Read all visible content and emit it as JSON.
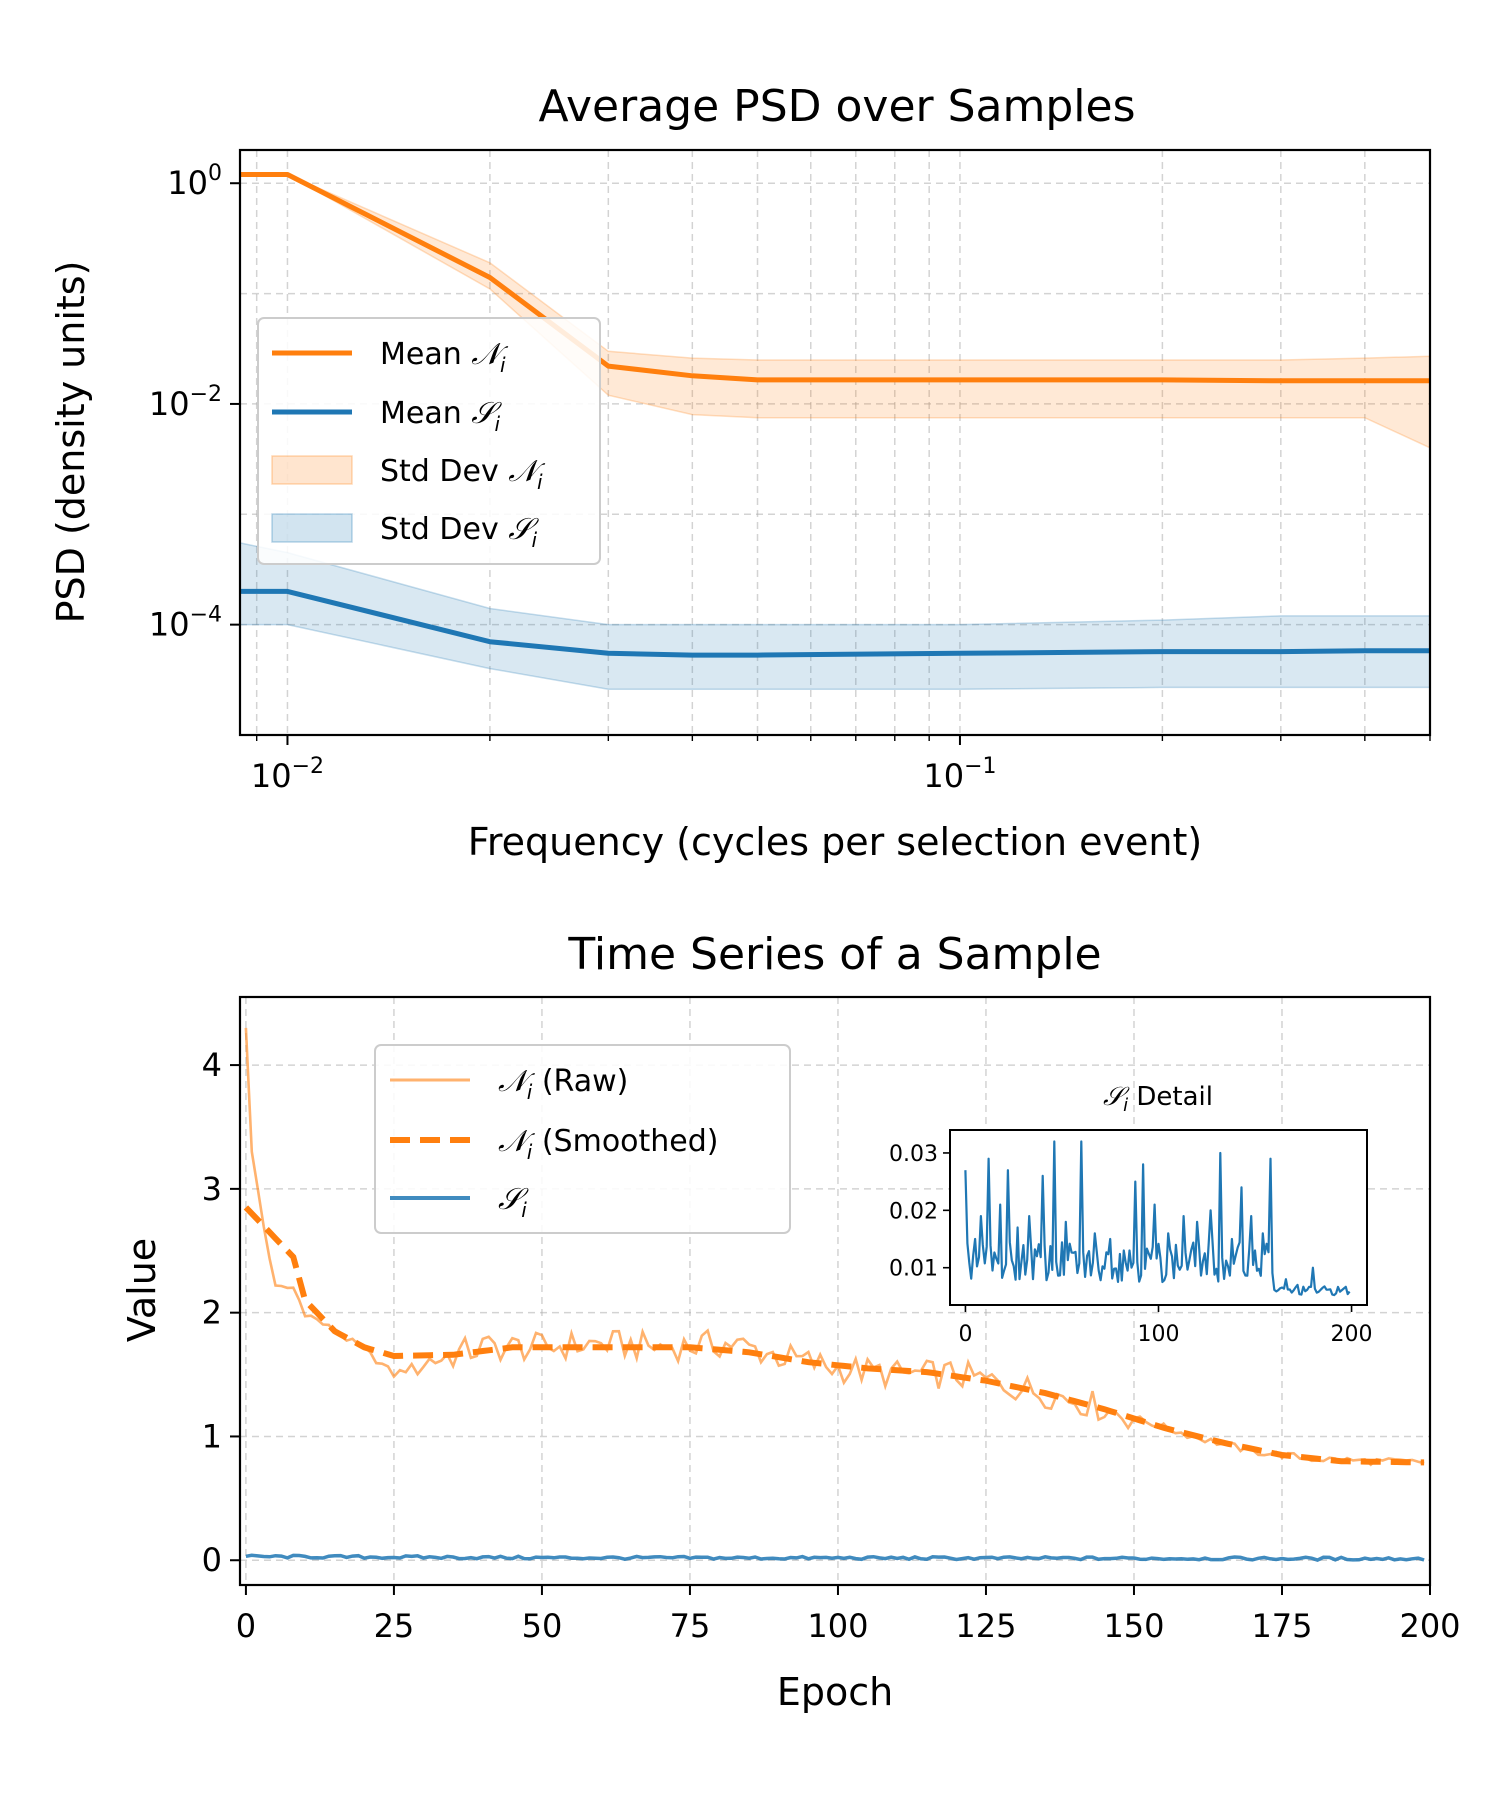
{
  "colors": {
    "orange": "#ff7f0e",
    "blue": "#1f77b4"
  },
  "chart_data": [
    {
      "type": "line",
      "title": "Average PSD over Samples",
      "xlabel": "Frequency (cycles per selection event)",
      "ylabel": "PSD (density units)",
      "xscale": "log",
      "yscale": "log",
      "xlim": [
        0.0085,
        0.5
      ],
      "ylim": [
        1e-05,
        2.0
      ],
      "xticks": [
        {
          "value": 0.01,
          "base": "10",
          "exp": "−2"
        },
        {
          "value": 0.1,
          "base": "10",
          "exp": "−1"
        }
      ],
      "yticks": [
        {
          "value": 1,
          "base": "10",
          "exp": "0"
        },
        {
          "value": 0.01,
          "base": "10",
          "exp": "−2"
        },
        {
          "value": 0.0001,
          "base": "10",
          "exp": "−4"
        }
      ],
      "grid": true,
      "legend_position": "center-left",
      "x": [
        0.0085,
        0.01,
        0.02,
        0.03,
        0.04,
        0.05,
        0.1,
        0.2,
        0.3,
        0.4,
        0.5
      ],
      "series": [
        {
          "name": "Mean N_i",
          "legend_base": "Mean ",
          "legend_sym": "𝒩",
          "legend_sub": "i",
          "color": "#ff7f0e",
          "values": [
            1.2,
            1.2,
            0.14,
            0.022,
            0.018,
            0.0165,
            0.0165,
            0.0165,
            0.0162,
            0.0162,
            0.0162
          ]
        },
        {
          "name": "Mean S_i",
          "legend_base": "Mean ",
          "legend_sym": "𝒮",
          "legend_sub": "i",
          "color": "#1f77b4",
          "values": [
            0.0002,
            0.0002,
            7e-05,
            5.5e-05,
            5.3e-05,
            5.3e-05,
            5.5e-05,
            5.7e-05,
            5.7e-05,
            5.8e-05,
            5.8e-05
          ]
        }
      ],
      "bands": [
        {
          "name": "Std Dev N_i",
          "legend_base": "Std Dev ",
          "legend_sym": "𝒩",
          "legend_sub": "i",
          "color": "#ff7f0e",
          "lower": [
            1.2,
            1.2,
            0.11,
            0.012,
            0.008,
            0.0075,
            0.0075,
            0.0075,
            0.0075,
            0.0075,
            0.004
          ],
          "upper": [
            1.2,
            1.2,
            0.19,
            0.03,
            0.026,
            0.025,
            0.025,
            0.025,
            0.025,
            0.026,
            0.027
          ]
        },
        {
          "name": "Std Dev S_i",
          "legend_base": "Std Dev ",
          "legend_sym": "𝒮",
          "legend_sub": "i",
          "color": "#1f77b4",
          "lower": [
            0.0001,
            0.0001,
            4e-05,
            2.6e-05,
            2.6e-05,
            2.6e-05,
            2.6e-05,
            2.7e-05,
            2.7e-05,
            2.7e-05,
            2.7e-05
          ],
          "upper": [
            0.00055,
            0.00045,
            0.00014,
            0.0001,
            0.0001,
            0.0001,
            0.0001,
            0.00011,
            0.00012,
            0.00012,
            0.00012
          ]
        }
      ]
    },
    {
      "type": "line",
      "title": "Time Series of a Sample",
      "xlabel": "Epoch",
      "ylabel": "Value",
      "xlim": [
        -1,
        200
      ],
      "ylim": [
        -0.2,
        4.55
      ],
      "xticks": [
        0,
        25,
        50,
        75,
        100,
        125,
        150,
        175,
        200
      ],
      "yticks": [
        0,
        1,
        2,
        3,
        4
      ],
      "grid": true,
      "legend_position": "upper-center-left",
      "series": [
        {
          "name": "N_i (Raw)",
          "legend_sym": "𝒩",
          "legend_sub": "i",
          "legend_rest": " (Raw)",
          "color": "#ff7f0e",
          "style": "thin",
          "keypoints": [
            [
              0,
              4.3
            ],
            [
              1,
              3.3
            ],
            [
              2,
              3.0
            ],
            [
              3,
              2.7
            ],
            [
              5,
              2.2
            ],
            [
              8,
              2.2
            ],
            [
              10,
              2.0
            ],
            [
              15,
              1.85
            ],
            [
              20,
              1.7
            ],
            [
              25,
              1.5
            ],
            [
              30,
              1.6
            ],
            [
              40,
              1.72
            ],
            [
              50,
              1.72
            ],
            [
              60,
              1.75
            ],
            [
              70,
              1.72
            ],
            [
              82,
              1.75
            ],
            [
              90,
              1.65
            ],
            [
              100,
              1.55
            ],
            [
              110,
              1.5
            ],
            [
              120,
              1.5
            ],
            [
              130,
              1.4
            ],
            [
              140,
              1.3
            ],
            [
              150,
              1.15
            ],
            [
              160,
              1.0
            ],
            [
              170,
              0.88
            ],
            [
              180,
              0.82
            ],
            [
              190,
              0.8
            ],
            [
              199,
              0.79
            ]
          ]
        },
        {
          "name": "N_i (Smoothed)",
          "legend_sym": "𝒩",
          "legend_sub": "i",
          "legend_rest": " (Smoothed)",
          "color": "#ff7f0e",
          "style": "dashed",
          "keypoints": [
            [
              0,
              2.85
            ],
            [
              3,
              2.7
            ],
            [
              6,
              2.55
            ],
            [
              8,
              2.45
            ],
            [
              10,
              2.1
            ],
            [
              15,
              1.85
            ],
            [
              20,
              1.72
            ],
            [
              25,
              1.65
            ],
            [
              35,
              1.66
            ],
            [
              45,
              1.72
            ],
            [
              55,
              1.72
            ],
            [
              65,
              1.72
            ],
            [
              75,
              1.72
            ],
            [
              85,
              1.68
            ],
            [
              95,
              1.6
            ],
            [
              105,
              1.55
            ],
            [
              115,
              1.52
            ],
            [
              125,
              1.45
            ],
            [
              135,
              1.35
            ],
            [
              145,
              1.22
            ],
            [
              155,
              1.07
            ],
            [
              165,
              0.95
            ],
            [
              175,
              0.85
            ],
            [
              185,
              0.8
            ],
            [
              199,
              0.79
            ]
          ]
        },
        {
          "name": "S_i",
          "legend_sym": "𝒮",
          "legend_sub": "i",
          "legend_rest": "",
          "color": "#1f77b4",
          "style": "solid",
          "keypoints": [
            [
              0,
              0.03
            ],
            [
              50,
              0.02
            ],
            [
              100,
              0.018
            ],
            [
              150,
              0.015
            ],
            [
              199,
              0.012
            ]
          ]
        }
      ],
      "inset": {
        "title_sym": "𝒮",
        "title_sub": "i",
        "title_rest": " Detail",
        "xlim": [
          -8,
          208
        ],
        "ylim": [
          0.0035,
          0.034
        ],
        "xticks": [
          0,
          100,
          200
        ],
        "yticks": [
          {
            "value": 0.01,
            "label": "0.01"
          },
          {
            "value": 0.02,
            "label": "0.02"
          },
          {
            "value": 0.03,
            "label": "0.03"
          }
        ],
        "series_name": "S_i",
        "color": "#1f77b4",
        "spikes": [
          [
            0,
            0.027
          ],
          [
            5,
            0.015
          ],
          [
            8,
            0.019
          ],
          [
            12,
            0.029
          ],
          [
            18,
            0.021
          ],
          [
            22,
            0.027
          ],
          [
            27,
            0.017
          ],
          [
            33,
            0.019
          ],
          [
            40,
            0.026
          ],
          [
            46,
            0.032
          ],
          [
            52,
            0.018
          ],
          [
            60,
            0.032
          ],
          [
            67,
            0.016
          ],
          [
            75,
            0.015
          ],
          [
            82,
            0.013
          ],
          [
            88,
            0.025
          ],
          [
            92,
            0.028
          ],
          [
            98,
            0.021
          ],
          [
            105,
            0.016
          ],
          [
            113,
            0.019
          ],
          [
            120,
            0.018
          ],
          [
            127,
            0.02
          ],
          [
            132,
            0.03
          ],
          [
            138,
            0.015
          ],
          [
            143,
            0.024
          ],
          [
            148,
            0.019
          ],
          [
            154,
            0.016
          ],
          [
            158,
            0.029
          ],
          [
            166,
            0.008
          ],
          [
            172,
            0.007
          ],
          [
            180,
            0.01
          ]
        ]
      }
    }
  ]
}
